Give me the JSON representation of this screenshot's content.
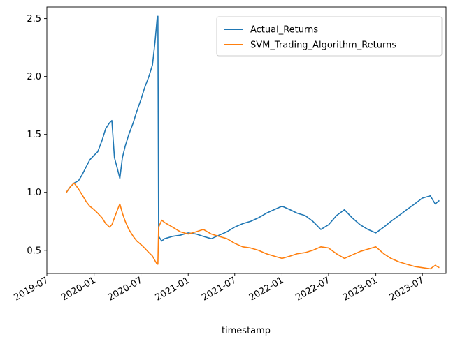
{
  "chart_data": {
    "type": "line",
    "title": "",
    "xlabel": "timestamp",
    "ylabel": "",
    "xlim": [
      "2019-07-01",
      "2023-10-01"
    ],
    "ylim": [
      0.3,
      2.6
    ],
    "x_ticks": [
      "2019-07",
      "2020-01",
      "2020-07",
      "2021-01",
      "2021-07",
      "2022-01",
      "2022-07",
      "2023-01",
      "2023-07"
    ],
    "y_ticks": [
      "0.5",
      "1.0",
      "1.5",
      "2.0",
      "2.5"
    ],
    "grid": false,
    "legend_position": "top-right",
    "series": [
      {
        "name": "Actual_Returns",
        "color": "#1f77b4",
        "points": [
          [
            "2019-09-15",
            1.0
          ],
          [
            "2019-10-01",
            1.05
          ],
          [
            "2019-10-15",
            1.08
          ],
          [
            "2019-11-01",
            1.1
          ],
          [
            "2019-11-15",
            1.15
          ],
          [
            "2019-12-01",
            1.22
          ],
          [
            "2019-12-15",
            1.28
          ],
          [
            "2020-01-01",
            1.32
          ],
          [
            "2020-01-15",
            1.35
          ],
          [
            "2020-02-01",
            1.45
          ],
          [
            "2020-02-15",
            1.55
          ],
          [
            "2020-03-01",
            1.6
          ],
          [
            "2020-03-10",
            1.62
          ],
          [
            "2020-03-20",
            1.3
          ],
          [
            "2020-04-01",
            1.2
          ],
          [
            "2020-04-10",
            1.12
          ],
          [
            "2020-04-20",
            1.3
          ],
          [
            "2020-05-01",
            1.4
          ],
          [
            "2020-05-15",
            1.5
          ],
          [
            "2020-06-01",
            1.6
          ],
          [
            "2020-06-15",
            1.7
          ],
          [
            "2020-07-01",
            1.8
          ],
          [
            "2020-07-15",
            1.9
          ],
          [
            "2020-08-01",
            2.0
          ],
          [
            "2020-08-15",
            2.1
          ],
          [
            "2020-08-25",
            2.3
          ],
          [
            "2020-09-02",
            2.5
          ],
          [
            "2020-09-05",
            2.52
          ],
          [
            "2020-09-08",
            0.62
          ],
          [
            "2020-09-20",
            0.58
          ],
          [
            "2020-10-01",
            0.6
          ],
          [
            "2020-11-01",
            0.62
          ],
          [
            "2020-12-01",
            0.63
          ],
          [
            "2021-01-01",
            0.65
          ],
          [
            "2021-02-01",
            0.64
          ],
          [
            "2021-03-01",
            0.62
          ],
          [
            "2021-04-01",
            0.6
          ],
          [
            "2021-05-01",
            0.63
          ],
          [
            "2021-06-01",
            0.66
          ],
          [
            "2021-07-01",
            0.7
          ],
          [
            "2021-08-01",
            0.73
          ],
          [
            "2021-09-01",
            0.75
          ],
          [
            "2021-10-01",
            0.78
          ],
          [
            "2021-11-01",
            0.82
          ],
          [
            "2021-12-01",
            0.85
          ],
          [
            "2022-01-01",
            0.88
          ],
          [
            "2022-02-01",
            0.85
          ],
          [
            "2022-03-01",
            0.82
          ],
          [
            "2022-04-01",
            0.8
          ],
          [
            "2022-05-01",
            0.75
          ],
          [
            "2022-06-01",
            0.68
          ],
          [
            "2022-07-01",
            0.72
          ],
          [
            "2022-08-01",
            0.8
          ],
          [
            "2022-09-01",
            0.85
          ],
          [
            "2022-10-01",
            0.78
          ],
          [
            "2022-11-01",
            0.72
          ],
          [
            "2022-12-01",
            0.68
          ],
          [
            "2023-01-01",
            0.65
          ],
          [
            "2023-02-01",
            0.7
          ],
          [
            "2023-03-01",
            0.75
          ],
          [
            "2023-04-01",
            0.8
          ],
          [
            "2023-05-01",
            0.85
          ],
          [
            "2023-06-01",
            0.9
          ],
          [
            "2023-07-01",
            0.95
          ],
          [
            "2023-08-01",
            0.97
          ],
          [
            "2023-08-20",
            0.9
          ],
          [
            "2023-09-05",
            0.93
          ]
        ]
      },
      {
        "name": "SVM_Trading_Algorithm_Returns",
        "color": "#ff7f0e",
        "points": [
          [
            "2019-09-15",
            1.0
          ],
          [
            "2019-10-01",
            1.05
          ],
          [
            "2019-10-15",
            1.08
          ],
          [
            "2019-11-01",
            1.03
          ],
          [
            "2019-11-15",
            0.98
          ],
          [
            "2019-12-01",
            0.92
          ],
          [
            "2019-12-15",
            0.88
          ],
          [
            "2020-01-01",
            0.85
          ],
          [
            "2020-01-15",
            0.82
          ],
          [
            "2020-02-01",
            0.78
          ],
          [
            "2020-02-15",
            0.73
          ],
          [
            "2020-03-01",
            0.7
          ],
          [
            "2020-03-10",
            0.72
          ],
          [
            "2020-03-20",
            0.78
          ],
          [
            "2020-04-01",
            0.85
          ],
          [
            "2020-04-10",
            0.9
          ],
          [
            "2020-04-20",
            0.82
          ],
          [
            "2020-05-01",
            0.75
          ],
          [
            "2020-05-15",
            0.68
          ],
          [
            "2020-06-01",
            0.62
          ],
          [
            "2020-06-15",
            0.58
          ],
          [
            "2020-07-01",
            0.55
          ],
          [
            "2020-07-15",
            0.52
          ],
          [
            "2020-08-01",
            0.48
          ],
          [
            "2020-08-15",
            0.45
          ],
          [
            "2020-08-25",
            0.41
          ],
          [
            "2020-09-02",
            0.38
          ],
          [
            "2020-09-05",
            0.38
          ],
          [
            "2020-09-08",
            0.7
          ],
          [
            "2020-09-20",
            0.76
          ],
          [
            "2020-10-01",
            0.74
          ],
          [
            "2020-11-01",
            0.7
          ],
          [
            "2020-12-01",
            0.66
          ],
          [
            "2021-01-01",
            0.64
          ],
          [
            "2021-02-01",
            0.66
          ],
          [
            "2021-03-01",
            0.68
          ],
          [
            "2021-04-01",
            0.64
          ],
          [
            "2021-05-01",
            0.62
          ],
          [
            "2021-06-01",
            0.6
          ],
          [
            "2021-07-01",
            0.56
          ],
          [
            "2021-08-01",
            0.53
          ],
          [
            "2021-09-01",
            0.52
          ],
          [
            "2021-10-01",
            0.5
          ],
          [
            "2021-11-01",
            0.47
          ],
          [
            "2021-12-01",
            0.45
          ],
          [
            "2022-01-01",
            0.43
          ],
          [
            "2022-02-01",
            0.45
          ],
          [
            "2022-03-01",
            0.47
          ],
          [
            "2022-04-01",
            0.48
          ],
          [
            "2022-05-01",
            0.5
          ],
          [
            "2022-06-01",
            0.53
          ],
          [
            "2022-07-01",
            0.52
          ],
          [
            "2022-08-01",
            0.47
          ],
          [
            "2022-09-01",
            0.43
          ],
          [
            "2022-10-01",
            0.46
          ],
          [
            "2022-11-01",
            0.49
          ],
          [
            "2022-12-01",
            0.51
          ],
          [
            "2023-01-01",
            0.53
          ],
          [
            "2023-02-01",
            0.47
          ],
          [
            "2023-03-01",
            0.43
          ],
          [
            "2023-04-01",
            0.4
          ],
          [
            "2023-05-01",
            0.38
          ],
          [
            "2023-06-01",
            0.36
          ],
          [
            "2023-07-01",
            0.35
          ],
          [
            "2023-08-01",
            0.34
          ],
          [
            "2023-08-20",
            0.37
          ],
          [
            "2023-09-05",
            0.35
          ]
        ]
      }
    ]
  }
}
